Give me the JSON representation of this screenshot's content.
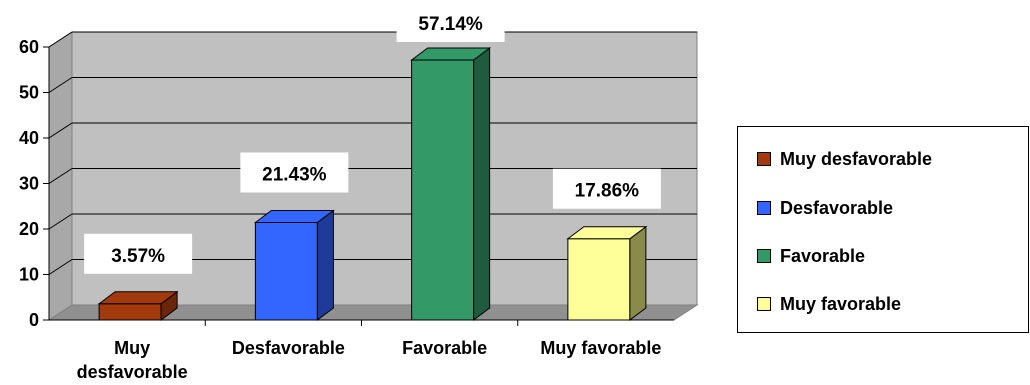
{
  "chart_data": {
    "type": "bar",
    "categories": [
      "Muy desfavorable",
      "Desfavorable",
      "Favorable",
      "Muy favorable"
    ],
    "category_labels": [
      [
        "Muy",
        "desfavorable"
      ],
      [
        "Desfavorable"
      ],
      [
        "Favorable"
      ],
      [
        "Muy favorable"
      ]
    ],
    "values": [
      3.57,
      21.43,
      57.14,
      17.86
    ],
    "data_labels": [
      "3.57%",
      "21.43%",
      "57.14%",
      "17.86%"
    ],
    "colors": [
      "#a23a0e",
      "#3366ff",
      "#339966",
      "#ffff99"
    ],
    "side_colors": [
      "#6b2509",
      "#1f3b99",
      "#1f5c3f",
      "#8a8a4a"
    ],
    "ylim": [
      0,
      60
    ],
    "yticks": [
      0,
      10,
      20,
      30,
      40,
      50,
      60
    ],
    "grid": true,
    "three_d": true,
    "plot_background": "#c0c0c0",
    "legend_position": "right",
    "title": "",
    "xlabel": "",
    "ylabel": ""
  },
  "legend": {
    "items": [
      {
        "label": "Muy desfavorable",
        "color": "#a23a0e"
      },
      {
        "label": "Desfavorable",
        "color": "#3366ff"
      },
      {
        "label": "Favorable",
        "color": "#339966"
      },
      {
        "label": "Muy favorable",
        "color": "#ffff99"
      }
    ]
  }
}
